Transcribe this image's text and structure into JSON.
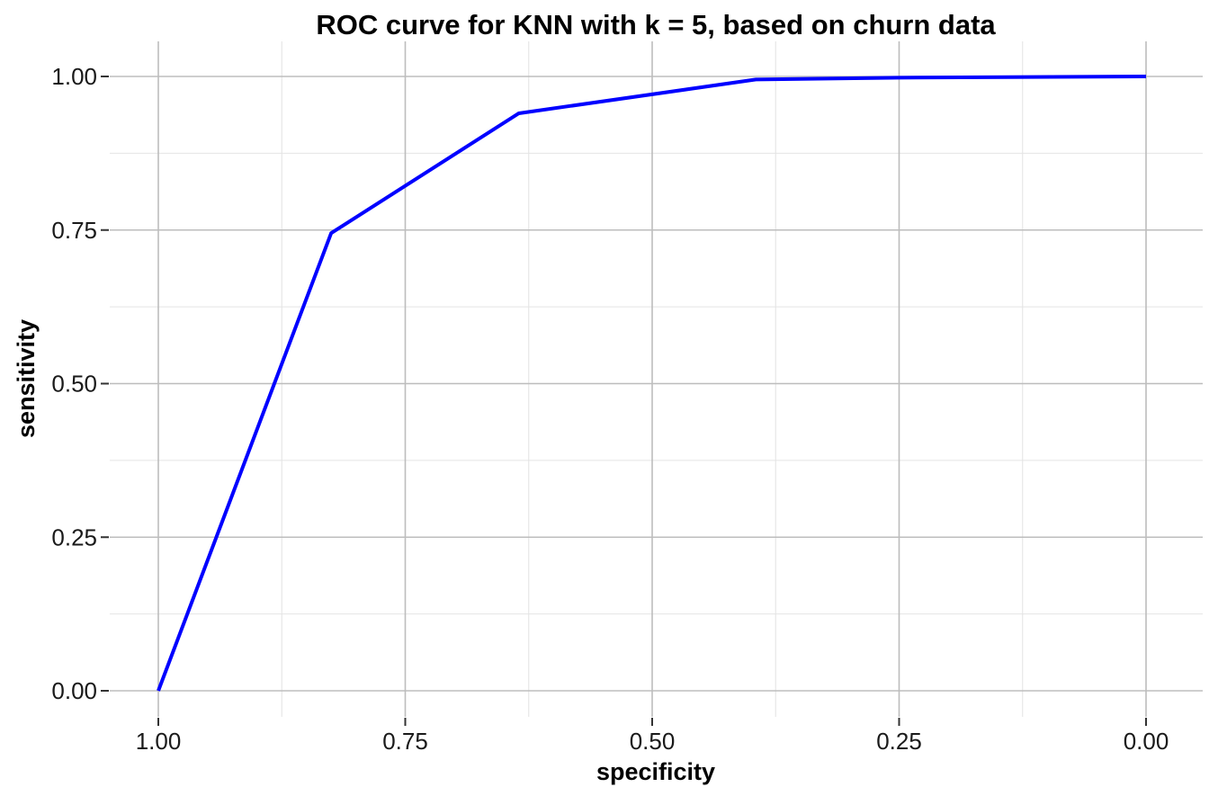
{
  "chart_data": {
    "type": "line",
    "title": "ROC curve for KNN with k = 5, based on churn data",
    "xlabel": "specificity",
    "ylabel": "sensitivity",
    "x_reversed": true,
    "xlim": [
      1.0,
      0.0
    ],
    "ylim": [
      0.0,
      1.0
    ],
    "grid": "major+minor",
    "legend_position": "none",
    "x_breaks": [
      1.0,
      0.75,
      0.5,
      0.25,
      0.0
    ],
    "x_tick_labels": [
      "1.00",
      "0.75",
      "0.50",
      "0.25",
      "0.00"
    ],
    "x_minor_breaks": [
      0.875,
      0.625,
      0.375,
      0.125
    ],
    "y_breaks": [
      0.0,
      0.25,
      0.5,
      0.75,
      1.0
    ],
    "y_tick_labels": [
      "0.00",
      "0.25",
      "0.50",
      "0.75",
      "1.00"
    ],
    "y_minor_breaks": [
      0.125,
      0.375,
      0.625,
      0.875
    ],
    "series": [
      {
        "name": "ROC curve (KNN, k = 5)",
        "color": "#0000FF",
        "points": [
          {
            "specificity": 1.0,
            "sensitivity": 0.0
          },
          {
            "specificity": 0.825,
            "sensitivity": 0.745
          },
          {
            "specificity": 0.635,
            "sensitivity": 0.94
          },
          {
            "specificity": 0.395,
            "sensitivity": 0.995
          },
          {
            "specificity": 0.25,
            "sensitivity": 0.998
          },
          {
            "specificity": 0.0,
            "sensitivity": 1.0
          }
        ]
      }
    ],
    "colors": {
      "line": "#0000FF",
      "grid_major": "#BDBDBD",
      "grid_minor": "#E4E4E4",
      "axis_tick": "#333333",
      "tick_label": "#1A1A1A",
      "title_text": "#000000",
      "background": "#FFFFFF"
    }
  }
}
